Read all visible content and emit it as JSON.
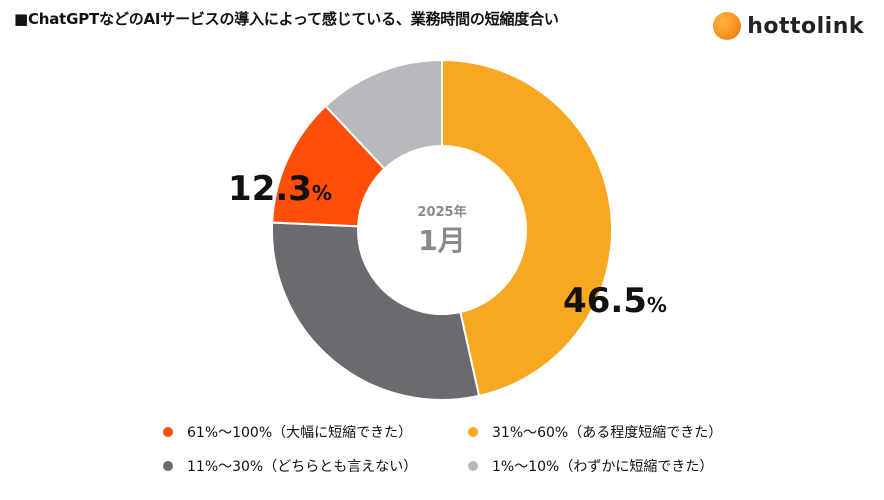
{
  "header": {
    "title": "■ChatGPTなどのAIサービスの導入によって感じている、業務時間の短縮度合い",
    "brand_name": "hottolink",
    "brand_icon": "orange-circle-logo"
  },
  "chart_data": {
    "type": "pie",
    "donut": true,
    "center_label_top": "2025年",
    "center_label_main": "1月",
    "legend_placement": "bottom",
    "slices": [
      {
        "name": "31%〜60%（ある程度短縮できた）",
        "value": 46.5,
        "label": "46.5",
        "color": "#f7a823"
      },
      {
        "name": "11%〜30%（どちらとも言えない）",
        "value": 29.2,
        "label": "",
        "color": "#6b6a6f"
      },
      {
        "name": "61%〜100%（大幅に短縮できた）",
        "value": 12.3,
        "label": "12.3",
        "color": "#ff4d0a"
      },
      {
        "name": "1%〜10%（わずかに短縮できた）",
        "value": 12.0,
        "label": "",
        "color": "#b9b8bc"
      }
    ],
    "percent_sign": "%",
    "legend": [
      {
        "name": "61%〜100%（大幅に短縮できた）",
        "color": "#ff4d0a"
      },
      {
        "name": "31%〜60%（ある程度短縮できた）",
        "color": "#f7a823"
      },
      {
        "name": "11%〜30%（どちらとも言えない）",
        "color": "#6b6a6f"
      },
      {
        "name": "1%〜10%（わずかに短縮できた）",
        "color": "#b9b8bc"
      }
    ]
  }
}
